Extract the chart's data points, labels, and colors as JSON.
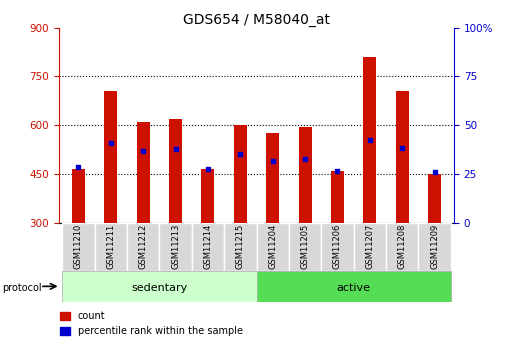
{
  "title": "GDS654 / M58040_at",
  "samples": [
    "GSM11210",
    "GSM11211",
    "GSM11212",
    "GSM11213",
    "GSM11214",
    "GSM11215",
    "GSM11204",
    "GSM11205",
    "GSM11206",
    "GSM11207",
    "GSM11208",
    "GSM11209"
  ],
  "counts": [
    465,
    705,
    610,
    620,
    465,
    600,
    575,
    595,
    460,
    810,
    705,
    450
  ],
  "percentile_values": [
    470,
    545,
    520,
    525,
    465,
    510,
    490,
    495,
    460,
    555,
    530,
    455
  ],
  "bar_bottom": 300,
  "ylim": [
    300,
    900
  ],
  "y2lim": [
    0,
    100
  ],
  "yticks": [
    300,
    450,
    600,
    750,
    900
  ],
  "y2ticks": [
    0,
    25,
    50,
    75,
    100
  ],
  "bar_color": "#cc1100",
  "blue_color": "#0000cc",
  "groups": [
    {
      "label": "sedentary",
      "start": 0,
      "end": 6,
      "color": "#ccffcc"
    },
    {
      "label": "active",
      "start": 6,
      "end": 12,
      "color": "#55dd55"
    }
  ],
  "group_row_label": "protocol",
  "legend_count": "count",
  "legend_pct": "percentile rank within the sample",
  "bar_width": 0.4
}
